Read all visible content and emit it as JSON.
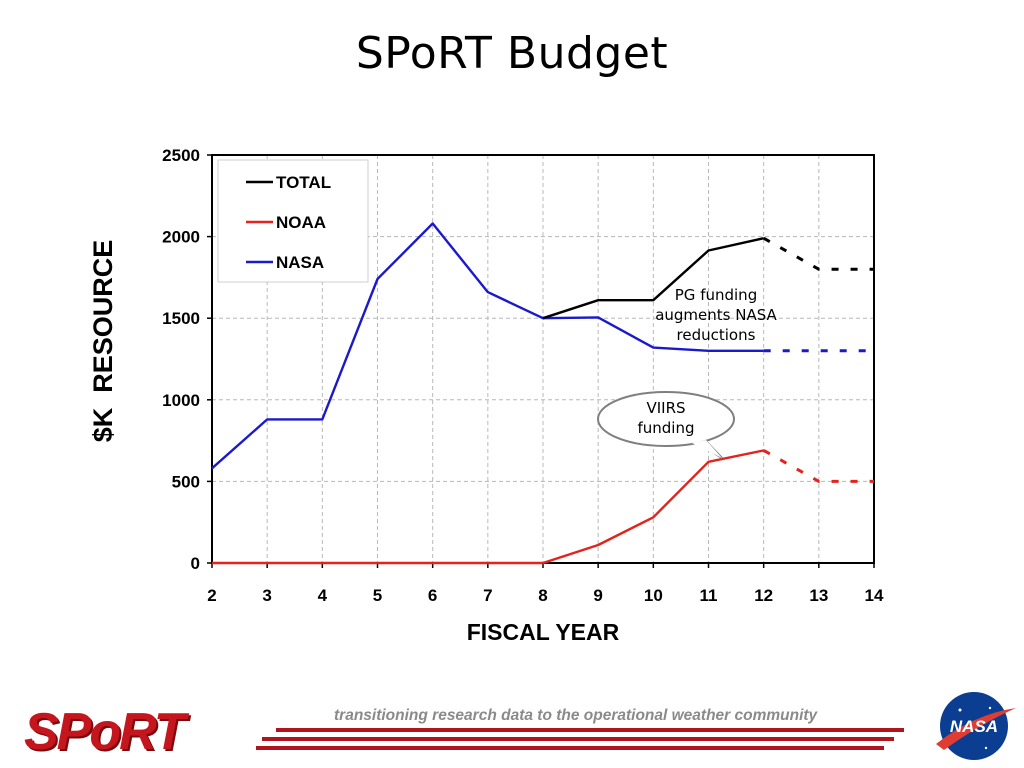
{
  "slide": {
    "title": "SPoRT Budget"
  },
  "chart_data": {
    "type": "line",
    "xlabel": "FISCAL YEAR",
    "ylabel": "$K  RESOURCE",
    "xlim": [
      2,
      14
    ],
    "ylim": [
      0,
      2500
    ],
    "xticks": [
      2,
      3,
      4,
      5,
      6,
      7,
      8,
      9,
      10,
      11,
      12,
      13,
      14
    ],
    "yticks": [
      0,
      500,
      1000,
      1500,
      2000,
      2500
    ],
    "grid": true,
    "legend_position": "top-left",
    "series": [
      {
        "name": "TOTAL",
        "color": "#000000",
        "points": [
          [
            8,
            1500
          ],
          [
            9,
            1610
          ],
          [
            10,
            1610
          ],
          [
            11,
            1915
          ],
          [
            12,
            1990
          ]
        ],
        "projected": [
          [
            12,
            1990
          ],
          [
            13,
            1800
          ],
          [
            14,
            1800
          ]
        ]
      },
      {
        "name": "NOAA",
        "color": "#e3231c",
        "points": [
          [
            2,
            0
          ],
          [
            3,
            0
          ],
          [
            4,
            0
          ],
          [
            5,
            0
          ],
          [
            6,
            0
          ],
          [
            7,
            0
          ],
          [
            8,
            0
          ],
          [
            9,
            110
          ],
          [
            10,
            280
          ],
          [
            11,
            620
          ],
          [
            12,
            690
          ]
        ],
        "projected": [
          [
            12,
            690
          ],
          [
            13,
            500
          ],
          [
            14,
            500
          ]
        ]
      },
      {
        "name": "NASA",
        "color": "#1a1acc",
        "points": [
          [
            2,
            580
          ],
          [
            3,
            880
          ],
          [
            4,
            880
          ],
          [
            5,
            1740
          ],
          [
            6,
            2080
          ],
          [
            7,
            1660
          ],
          [
            8,
            1500
          ],
          [
            9,
            1505
          ],
          [
            10,
            1320
          ],
          [
            11,
            1300
          ],
          [
            12,
            1300
          ]
        ],
        "projected": [
          [
            12,
            1300
          ],
          [
            13,
            1300
          ],
          [
            14,
            1300
          ]
        ]
      }
    ],
    "annotations": [
      {
        "id": "pg",
        "lines": [
          "PG funding",
          "augments NASA",
          "reductions"
        ]
      },
      {
        "id": "viirs",
        "lines": [
          "VIIRS",
          "funding"
        ]
      }
    ]
  },
  "footer": {
    "tagline": "transitioning research data to the operational weather community",
    "logo_left": "SPoRT",
    "logo_right": "NASA"
  }
}
